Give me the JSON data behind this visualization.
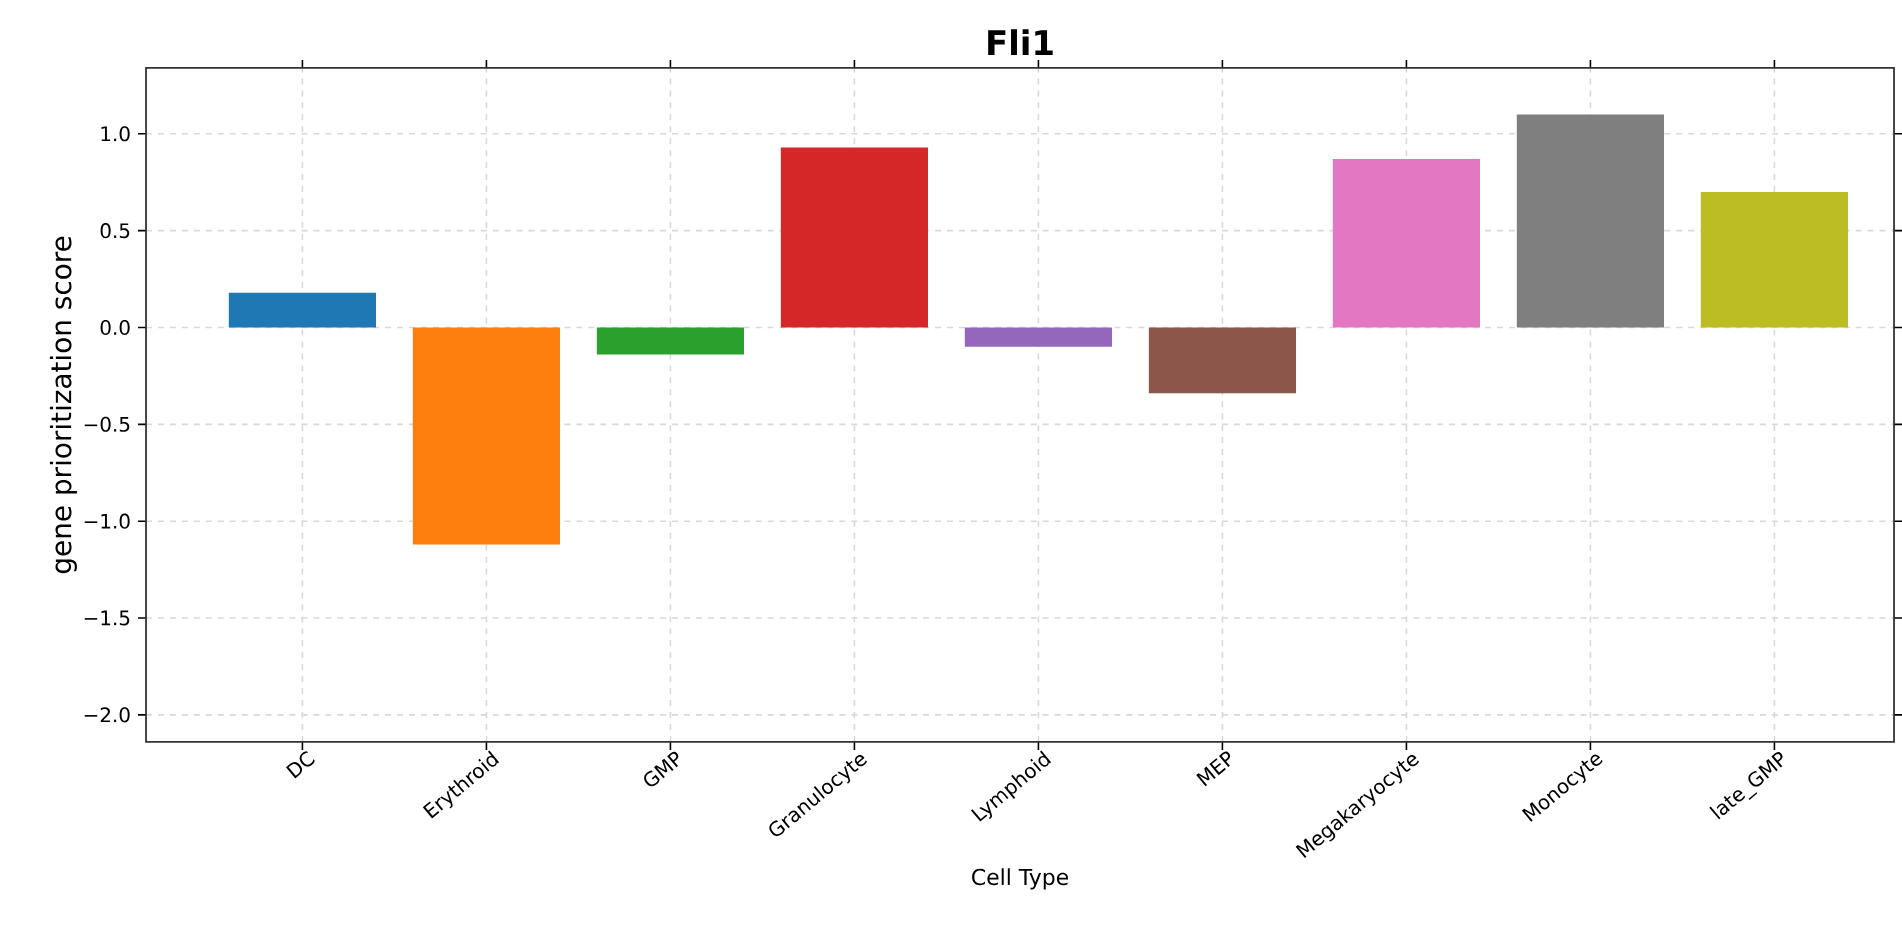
{
  "chart_data": {
    "type": "bar",
    "title": "Fli1",
    "xlabel": "Cell Type",
    "ylabel": "gene prioritization score",
    "categories": [
      "DC",
      "Erythroid",
      "GMP",
      "Granulocyte",
      "Lymphoid",
      "MEP",
      "Megakaryocyte",
      "Monocyte",
      "late_GMP"
    ],
    "values": [
      0.18,
      -1.12,
      -0.14,
      0.93,
      -0.1,
      -0.34,
      0.87,
      1.1,
      0.7
    ],
    "colors": [
      "#1f77b4",
      "#ff7f0e",
      "#2ca02c",
      "#d62728",
      "#9467bd",
      "#8c564b",
      "#e377c2",
      "#7f7f7f",
      "#bcbd22"
    ],
    "ylim": [
      -2.14,
      1.34
    ],
    "yticks": [
      {
        "value": -2,
        "label": "−2.0"
      },
      {
        "value": -1.5,
        "label": "−1.5"
      },
      {
        "value": -1,
        "label": "−1.0"
      },
      {
        "value": -0.5,
        "label": "−0.5"
      },
      {
        "value": 0,
        "label": "0.0"
      },
      {
        "value": 0.5,
        "label": "0.5"
      },
      {
        "value": 1,
        "label": "1.0"
      }
    ],
    "grid": true
  }
}
